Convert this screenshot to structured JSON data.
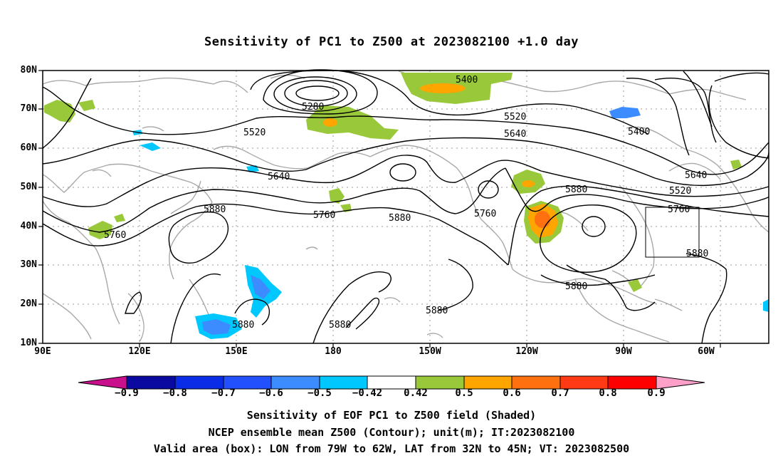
{
  "title": "Sensitivity of PC1 to Z500 at 2023082100 +1.0 day",
  "y_axis_labels": [
    "80N",
    "70N",
    "60N",
    "50N",
    "40N",
    "30N",
    "20N",
    "10N"
  ],
  "x_axis_labels": [
    "90E",
    "120E",
    "150E",
    "180",
    "150W",
    "120W",
    "90W",
    "60W"
  ],
  "contour_labels": [
    "5400",
    "5280",
    "5520",
    "5640",
    "5400",
    "5520",
    "5640",
    "5760",
    "5880",
    "5640",
    "5880",
    "5760",
    "5880",
    "5760",
    "5880",
    "5880",
    "5880",
    "5880",
    "5880",
    "5880",
    "5520",
    "5640",
    "5760",
    "5880"
  ],
  "colorbar": {
    "ticks": [
      "−0.9",
      "−0.8",
      "−0.7",
      "−0.6",
      "−0.5",
      "−0.42",
      "0.42",
      "0.5",
      "0.6",
      "0.7",
      "0.8",
      "0.9"
    ],
    "colors": {
      "lt_-0.9": "#c8108c",
      "-0.9_-0.8": "#0a0aa0",
      "-0.8_-0.7": "#0a2ce6",
      "-0.7_-0.6": "#2350ff",
      "-0.6_-0.5": "#3d8cff",
      "-0.5_-0.42": "#00c8ff",
      "-0.42_0.42": "#ffffff",
      "0.42_0.5": "#99c93a",
      "0.5_0.6": "#ffa500",
      "0.6_0.7": "#ff7010",
      "0.7_0.8": "#ff3a14",
      "0.8_0.9": "#ff0000",
      "gt_0.9": "#ffa0c8"
    }
  },
  "footer": {
    "line1": "Sensitivity of EOF PC1 to Z500 field (Shaded)",
    "line2": "NCEP ensemble mean Z500 (Contour); unit(m); IT:2023082100",
    "line3": "Valid area (box): LON from 79W to 62W, LAT from 32N to 45N; VT: 2023082500"
  }
}
